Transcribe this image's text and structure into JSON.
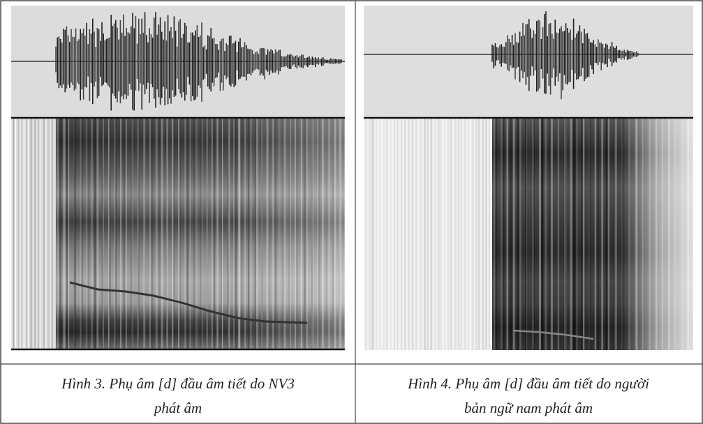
{
  "figures": [
    {
      "caption_lines": [
        "Hình 3. Phụ âm [d] đầu âm tiết do NV3",
        "phát âm"
      ]
    },
    {
      "caption_lines": [
        "Hình 4. Phụ âm [d] đầu âm tiết do người",
        "bản ngữ nam phát âm"
      ]
    }
  ]
}
